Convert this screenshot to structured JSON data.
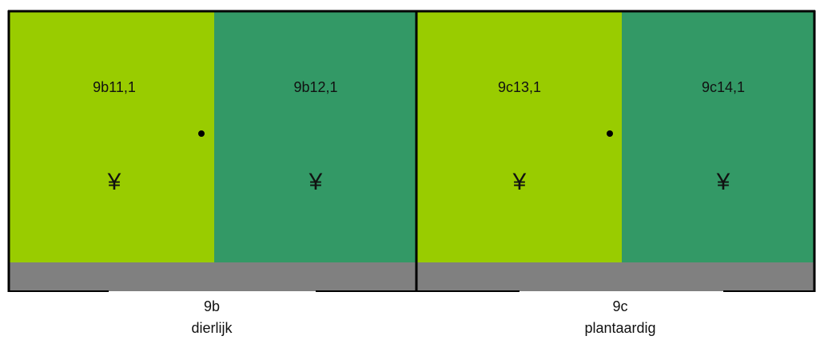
{
  "groups": [
    {
      "code": "9b",
      "label": "dierlijk",
      "cells": [
        {
          "label": "9b11,1",
          "symbol": "¥"
        },
        {
          "label": "9b12,1",
          "symbol": "¥"
        }
      ]
    },
    {
      "code": "9c",
      "label": "plantaardig",
      "cells": [
        {
          "label": "9c13,1",
          "symbol": "¥"
        },
        {
          "label": "9c14,1",
          "symbol": "¥"
        }
      ]
    }
  ]
}
